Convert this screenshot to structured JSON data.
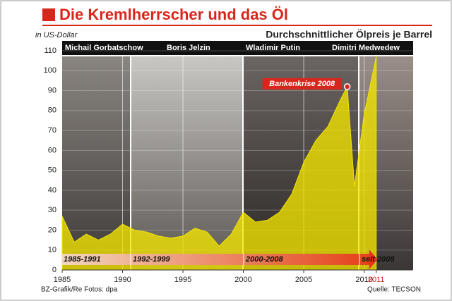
{
  "chart_data": {
    "type": "area",
    "title": "Die Kremlherrscher und das Öl",
    "subtitle": "Durchschnittlicher Ölpreis je Barrel",
    "y_label": "in US-Dollar",
    "leaders": [
      "Michail Gorbatschow",
      "Boris Jelzin",
      "Wladimir Putin",
      "Dimitri Medwedew"
    ],
    "periods": [
      "1985-1991",
      "1992-1999",
      "2000-2008",
      "seit 2008"
    ],
    "annotation": {
      "label": "Bankenkrise 2008",
      "x": 2008.6,
      "y": 92
    },
    "credit": "BZ-Grafik/Re Fotos: dpa",
    "source": "Quelle: TECSON",
    "x": [
      1985,
      1986,
      1987,
      1988,
      1989,
      1990,
      1991,
      1992,
      1993,
      1994,
      1995,
      1996,
      1997,
      1998,
      1999,
      2000,
      2001,
      2002,
      2003,
      2004,
      2005,
      2006,
      2007,
      2008,
      2008.6,
      2009.2,
      2010,
      2011
    ],
    "values": [
      27,
      14,
      18,
      15,
      18,
      23,
      20,
      19,
      17,
      16,
      17,
      21,
      19,
      12,
      18,
      29,
      24,
      25,
      29,
      38,
      54,
      65,
      72,
      85,
      92,
      42,
      78,
      107
    ],
    "color": "#f3e600",
    "xlim": [
      1985,
      2014
    ],
    "ylim": [
      0,
      110
    ],
    "xticks": [
      1985,
      1990,
      1995,
      2000,
      2005,
      2010,
      2011
    ],
    "yticks": [
      0,
      10,
      20,
      30,
      40,
      50,
      60,
      70,
      80,
      90,
      100,
      110
    ],
    "grid": true
  }
}
